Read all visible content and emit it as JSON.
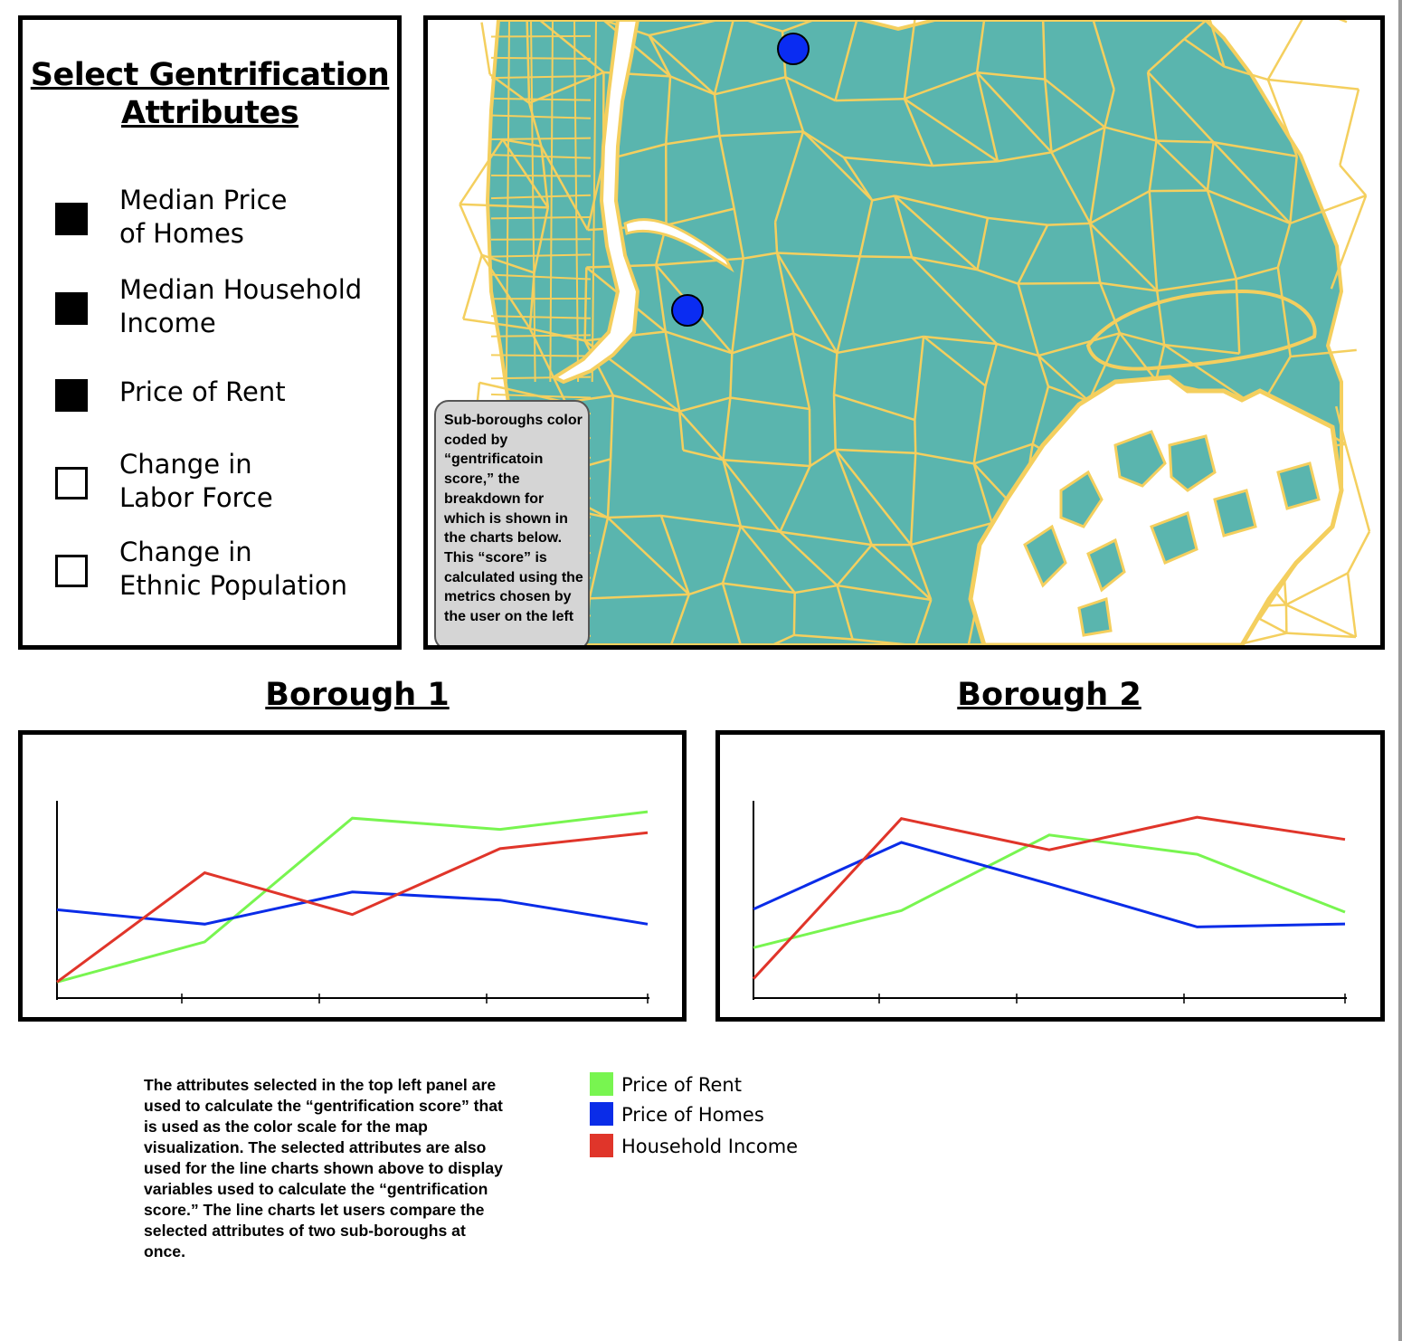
{
  "attributes_panel": {
    "title": "Select Gentrification Attributes",
    "options": [
      {
        "label": "Median Price\nof Homes",
        "checked": true
      },
      {
        "label": "Median Household\nIncome",
        "checked": true
      },
      {
        "label": "Price of Rent",
        "checked": true
      },
      {
        "label": "Change in\nLabor Force",
        "checked": false
      },
      {
        "label": "Change in\nEthnic Population",
        "checked": false
      }
    ]
  },
  "map": {
    "fill_color": "#5ab5ae",
    "border_color": "#f4cf5e",
    "marker_color": "#0a2cf2",
    "note": "Sub-boroughs color coded by “gentrificatoin score,” the breakdown for which is shown in the charts below. This “score” is calculated using the metrics chosen by the user on the left"
  },
  "chart_data": [
    {
      "type": "line",
      "title": "Borough 1",
      "x": [
        0,
        1,
        2,
        3,
        4
      ],
      "series": [
        {
          "name": "Price of Rent",
          "color": "#78f550",
          "values": [
            0.1,
            0.35,
            1.12,
            1.05,
            1.16
          ]
        },
        {
          "name": "Price of Homes",
          "color": "#0a2ce8",
          "values": [
            0.55,
            0.46,
            0.66,
            0.61,
            0.46
          ]
        },
        {
          "name": "Household Income",
          "color": "#e0352a",
          "values": [
            0.1,
            0.78,
            0.52,
            0.93,
            1.03
          ]
        }
      ]
    },
    {
      "type": "line",
      "title": "Borough 2",
      "x": [
        0,
        1,
        2,
        3,
        4
      ],
      "series": [
        {
          "name": "Price of Rent",
          "color": "#78f550",
          "values": [
            0.34,
            0.59,
            1.1,
            0.97,
            0.58
          ]
        },
        {
          "name": "Price of Homes",
          "color": "#0a2ce8",
          "values": [
            0.6,
            1.05,
            0.77,
            0.48,
            0.5
          ]
        },
        {
          "name": "Household Income",
          "color": "#e0352a",
          "values": [
            0.13,
            1.21,
            1.0,
            1.22,
            1.07
          ]
        }
      ]
    }
  ],
  "footnote": "The attributes selected in the top left panel are used to calculate the “gentrification score” that is used as the color scale for the map visualization. The selected attributes are also used for the line charts shown above to display variables used to calculate the “gentrification score.” The line charts let users compare the selected attributes of two sub-boroughs at once.",
  "legend": [
    {
      "label": "Price of Rent",
      "color": "#78f550"
    },
    {
      "label": "Price of Homes",
      "color": "#0a2ce8"
    },
    {
      "label": "Household Income",
      "color": "#e0352a"
    }
  ]
}
